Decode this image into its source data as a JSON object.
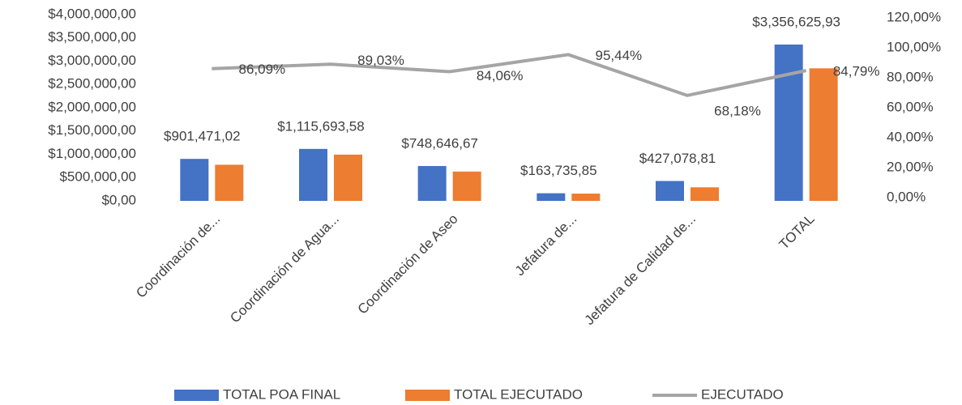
{
  "chart_data": {
    "type": "bar",
    "categories": [
      "Coordinación de...",
      "Coordinación de Agua...",
      "Coordinación de Aseo",
      "Jefatura de...",
      "Jefatura de Calidad de...",
      "TOTAL"
    ],
    "series": [
      {
        "name": "TOTAL POA FINAL",
        "color": "#4472c4",
        "values": [
          901471.02,
          1115693.58,
          748646.67,
          163735.85,
          427078.81,
          3356625.93
        ],
        "value_labels": [
          "$901,471,02",
          "$1,115,693,58",
          "$748,646,67",
          "$163,735,85",
          "$427,078,81",
          "$3,356,625,93"
        ]
      },
      {
        "name": "TOTAL EJECUTADO",
        "color": "#ed7d31",
        "values": [
          776077,
          993302,
          629312,
          156269,
          291182,
          2846083
        ]
      },
      {
        "name": "EJECUTADO",
        "type": "line",
        "axis": "y2",
        "color": "#a5a5a5",
        "values": [
          86.09,
          89.03,
          84.06,
          95.44,
          68.18,
          84.79
        ],
        "value_labels": [
          "86,09%",
          "89,03%",
          "84,06%",
          "95,44%",
          "68,18%",
          "84,79%"
        ]
      }
    ],
    "ylim": [
      0,
      4000000
    ],
    "yticks": [
      {
        "value": 0,
        "label": "$0,00"
      },
      {
        "value": 500000,
        "label": "$500,000,00"
      },
      {
        "value": 1000000,
        "label": "$1,000,000,00"
      },
      {
        "value": 1500000,
        "label": "$1,500,000,00"
      },
      {
        "value": 2000000,
        "label": "$2,000,000,00"
      },
      {
        "value": 2500000,
        "label": "$2,500,000,00"
      },
      {
        "value": 3000000,
        "label": "$3,000,000,00"
      },
      {
        "value": 3500000,
        "label": "$3,500,000,00"
      },
      {
        "value": 4000000,
        "label": "$4,000,000,00"
      }
    ],
    "y2lim": [
      0,
      120
    ],
    "y2ticks": [
      {
        "value": 0,
        "label": "0,00%"
      },
      {
        "value": 20,
        "label": "20,00%"
      },
      {
        "value": 40,
        "label": "40,00%"
      },
      {
        "value": 60,
        "label": "60,00%"
      },
      {
        "value": 80,
        "label": "80,00%"
      },
      {
        "value": 100,
        "label": "100,00%"
      },
      {
        "value": 120,
        "label": "120,00%"
      }
    ],
    "grid": false,
    "legend": "bottom"
  }
}
